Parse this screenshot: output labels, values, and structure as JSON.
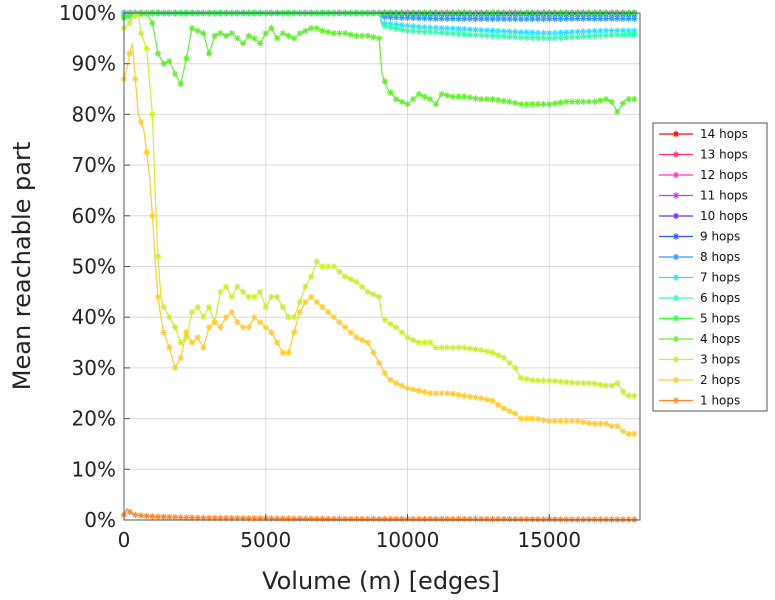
{
  "chart_data": {
    "type": "line",
    "xlabel": "Volume (m) [edges]",
    "ylabel": "Mean reachable part",
    "xlim": [
      0,
      18200
    ],
    "ylim": [
      0,
      100
    ],
    "x_ticks": [
      0,
      5000,
      10000,
      15000
    ],
    "x_tick_labels": [
      "0",
      "5000",
      "10000",
      "15000"
    ],
    "y_ticks": [
      0,
      10,
      20,
      30,
      40,
      50,
      60,
      70,
      80,
      90,
      100
    ],
    "y_tick_labels": [
      "0%",
      "10%",
      "20%",
      "30%",
      "40%",
      "50%",
      "60%",
      "70%",
      "80%",
      "90%",
      "100%"
    ],
    "grid": true,
    "legend_position": "right",
    "series": [
      {
        "name": "14 hops",
        "color": "#ff0000",
        "x": [
          0,
          18000
        ],
        "y": [
          100,
          100
        ]
      },
      {
        "name": "13 hops",
        "color": "#ff3366",
        "x": [
          0,
          18000
        ],
        "y": [
          100,
          100
        ]
      },
      {
        "name": "12 hops",
        "color": "#ff33cc",
        "x": [
          0,
          18000
        ],
        "y": [
          100,
          100
        ]
      },
      {
        "name": "11 hops",
        "color": "#cc33ff",
        "x": [
          0,
          18000
        ],
        "y": [
          100,
          100
        ]
      },
      {
        "name": "10 hops",
        "color": "#6633ff",
        "x": [
          0,
          9000,
          9100,
          18000
        ],
        "y": [
          100,
          100,
          100,
          100
        ]
      },
      {
        "name": "9 hops",
        "color": "#3355ff",
        "x": [
          0,
          9000,
          9100,
          18000
        ],
        "y": [
          100,
          100,
          99.8,
          99.7
        ]
      },
      {
        "name": "8 hops",
        "color": "#3399ff",
        "x": [
          0,
          9000,
          9100,
          11000,
          14000,
          16000,
          18000
        ],
        "y": [
          100,
          100,
          99.2,
          98.9,
          98.8,
          98.9,
          98.9
        ]
      },
      {
        "name": "7 hops",
        "color": "#33ddff",
        "x": [
          0,
          9000,
          9100,
          10500,
          12000,
          13000,
          14000,
          15000,
          16000,
          17000,
          18000
        ],
        "y": [
          100,
          100,
          98,
          97.2,
          96.8,
          96.5,
          96.2,
          96.0,
          96.3,
          96.5,
          96.5
        ]
      },
      {
        "name": "6 hops",
        "color": "#33ffaa",
        "x": [
          0,
          300,
          1000,
          9000,
          9100,
          10000,
          11000,
          12000,
          13000,
          14000,
          15000,
          16000,
          17000,
          18000
        ],
        "y": [
          99.5,
          100,
          100,
          100,
          97.5,
          96.5,
          96.2,
          95.8,
          95.5,
          95.2,
          95.0,
          95.3,
          95.6,
          95.8
        ]
      },
      {
        "name": "5 hops",
        "color": "#33ff33",
        "x": [
          0,
          300,
          600,
          1000,
          9000,
          18000
        ],
        "y": [
          99,
          99.5,
          99.8,
          100,
          100,
          100
        ]
      },
      {
        "name": "4 hops",
        "color": "#66ee33",
        "x": [
          0,
          200,
          500,
          800,
          1000,
          1200,
          1400,
          1600,
          1800,
          2000,
          2200,
          2400,
          2600,
          2800,
          3000,
          3200,
          3400,
          3600,
          3800,
          4000,
          4200,
          4400,
          4600,
          4800,
          5000,
          5200,
          5400,
          5600,
          5800,
          6000,
          6200,
          6400,
          6600,
          6800,
          7000,
          7400,
          7800,
          8200,
          8600,
          9000,
          9100,
          9300,
          9600,
          10000,
          10400,
          10800,
          11000,
          11200,
          11600,
          12000,
          12600,
          13000,
          13600,
          14000,
          14400,
          15000,
          15600,
          16000,
          16600,
          17000,
          17200,
          17400,
          17700,
          18000
        ],
        "y": [
          99.5,
          99.7,
          99.9,
          100,
          98,
          92,
          90,
          90.5,
          88,
          86,
          91,
          97,
          96.5,
          96,
          92,
          95.5,
          96,
          95.5,
          96,
          95,
          94,
          95.5,
          95,
          94,
          96,
          97,
          95,
          96,
          95.5,
          95,
          96,
          96.5,
          97,
          97,
          96.5,
          96,
          96,
          95.5,
          95.5,
          95,
          88,
          85,
          83,
          82,
          84,
          83,
          82,
          84,
          83.5,
          83.5,
          83,
          83,
          82.5,
          82,
          82,
          82,
          82.5,
          82.5,
          82.5,
          83,
          82.5,
          80.5,
          83,
          83
        ]
      },
      {
        "name": "3 hops",
        "color": "#ccee33",
        "x": [
          0,
          200,
          300,
          500,
          600,
          800,
          1000,
          1100,
          1200,
          1300,
          1400,
          1600,
          1800,
          2000,
          2200,
          2400,
          2600,
          2800,
          3000,
          3200,
          3400,
          3600,
          3800,
          4000,
          4200,
          4400,
          4600,
          4800,
          5000,
          5200,
          5400,
          5600,
          5800,
          6000,
          6200,
          6400,
          6600,
          6800,
          7000,
          7400,
          7800,
          8200,
          8600,
          9000,
          9100,
          9300,
          9600,
          10000,
          10400,
          10800,
          11000,
          11500,
          12000,
          12600,
          13000,
          13400,
          13800,
          14000,
          14500,
          15000,
          16000,
          16500,
          17000,
          17200,
          17400,
          17700,
          18000
        ],
        "y": [
          97,
          98,
          99,
          100,
          96,
          93,
          80,
          64,
          52,
          44,
          42,
          40,
          38,
          35,
          36,
          41,
          42,
          40,
          42,
          39,
          45,
          46,
          44,
          46,
          45,
          44,
          44,
          45,
          42,
          44,
          44,
          42,
          40,
          40,
          43,
          46,
          48,
          51,
          50,
          50,
          48,
          47,
          45,
          44,
          40,
          39,
          38,
          36,
          35,
          35,
          34,
          34,
          34,
          33.5,
          33,
          32,
          30,
          28,
          27.5,
          27.5,
          27,
          27,
          26.5,
          26.5,
          27,
          24.5,
          24.5
        ]
      },
      {
        "name": "2 hops",
        "color": "#ffcc33",
        "x": [
          0,
          100,
          200,
          300,
          500,
          700,
          900,
          1000,
          1100,
          1200,
          1300,
          1400,
          1600,
          1800,
          2000,
          2200,
          2400,
          2600,
          2800,
          3000,
          3200,
          3400,
          3600,
          3800,
          4000,
          4200,
          4400,
          4600,
          4800,
          5000,
          5200,
          5400,
          5600,
          5800,
          6000,
          6200,
          6400,
          6600,
          6800,
          7000,
          7400,
          7800,
          8200,
          8600,
          9000,
          9100,
          9300,
          9600,
          10000,
          10400,
          10800,
          11500,
          12000,
          12600,
          13000,
          13400,
          13800,
          14000,
          14500,
          15000,
          16000,
          16500,
          17000,
          17200,
          17400,
          17700,
          18000
        ],
        "y": [
          87,
          89,
          92,
          94,
          80,
          77,
          68,
          60,
          51,
          44,
          40,
          37,
          34,
          30,
          32,
          37,
          35,
          36,
          34,
          38,
          39,
          38,
          40,
          41,
          39,
          38,
          38,
          40,
          39,
          38,
          37,
          35,
          33,
          33,
          37,
          41,
          43,
          44,
          43,
          42,
          40,
          38,
          36,
          35,
          31,
          30,
          28,
          27,
          26,
          25.5,
          25,
          25,
          24.5,
          24,
          23.5,
          22,
          21,
          20,
          20,
          19.5,
          19.5,
          19,
          19,
          18.5,
          18.5,
          17,
          17
        ]
      },
      {
        "name": "1 hops",
        "color": "#ff8833",
        "x": [
          0,
          100,
          200,
          300,
          400,
          600,
          800,
          1000,
          1500,
          2000,
          3000,
          5000,
          8000,
          12000,
          16000,
          18000
        ],
        "y": [
          1,
          2.2,
          1.6,
          1.2,
          1.0,
          0.9,
          0.8,
          0.7,
          0.6,
          0.5,
          0.4,
          0.3,
          0.2,
          0.2,
          0.1,
          0.1
        ]
      }
    ]
  }
}
